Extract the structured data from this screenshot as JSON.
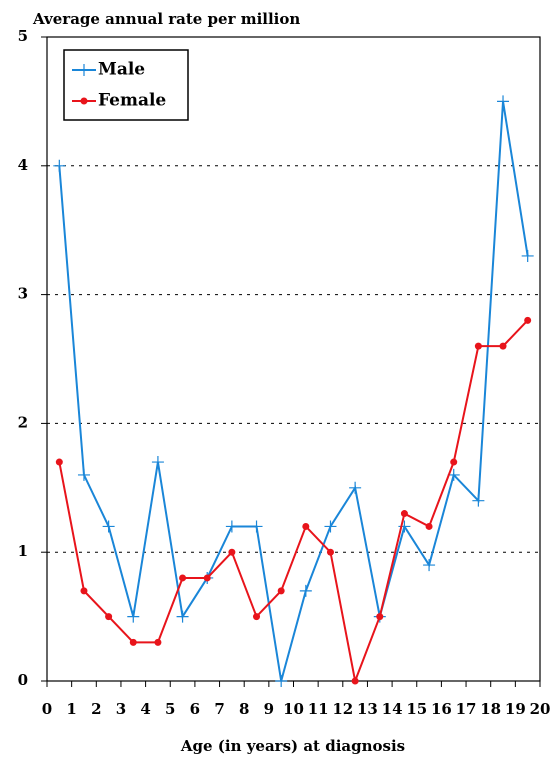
{
  "chart_data": {
    "type": "line",
    "y_label": "Average annual rate per million",
    "x_label": "Age (in years) at diagnosis",
    "x": [
      0.5,
      1.5,
      2.5,
      3.5,
      4.5,
      5.5,
      6.5,
      7.5,
      8.5,
      9.5,
      10.5,
      11.5,
      12.5,
      13.5,
      14.5,
      15.5,
      16.5,
      17.5,
      18.5,
      19.5
    ],
    "series": [
      {
        "name": "Male",
        "color": "#1a86d8",
        "marker": "plus",
        "values": [
          4.0,
          1.6,
          1.2,
          0.5,
          1.7,
          0.5,
          0.8,
          1.2,
          1.2,
          0.0,
          0.7,
          1.2,
          1.5,
          0.5,
          1.2,
          0.9,
          1.6,
          1.4,
          4.5,
          3.3
        ]
      },
      {
        "name": "Female",
        "color": "#e8141b",
        "marker": "circle",
        "values": [
          1.7,
          0.7,
          0.5,
          0.3,
          0.3,
          0.8,
          0.8,
          1.0,
          0.5,
          0.7,
          1.2,
          1.0,
          0.0,
          0.5,
          1.3,
          1.2,
          1.7,
          2.6,
          2.6,
          2.8
        ]
      }
    ],
    "xlim": [
      0,
      20
    ],
    "xticks": [
      0,
      1,
      2,
      3,
      4,
      5,
      6,
      7,
      8,
      9,
      10,
      11,
      12,
      13,
      14,
      15,
      16,
      17,
      18,
      19,
      20
    ],
    "ylim": [
      0,
      5
    ],
    "yticks": [
      0,
      1,
      2,
      3,
      4,
      5
    ],
    "grid": true,
    "legend": "upper-left"
  }
}
